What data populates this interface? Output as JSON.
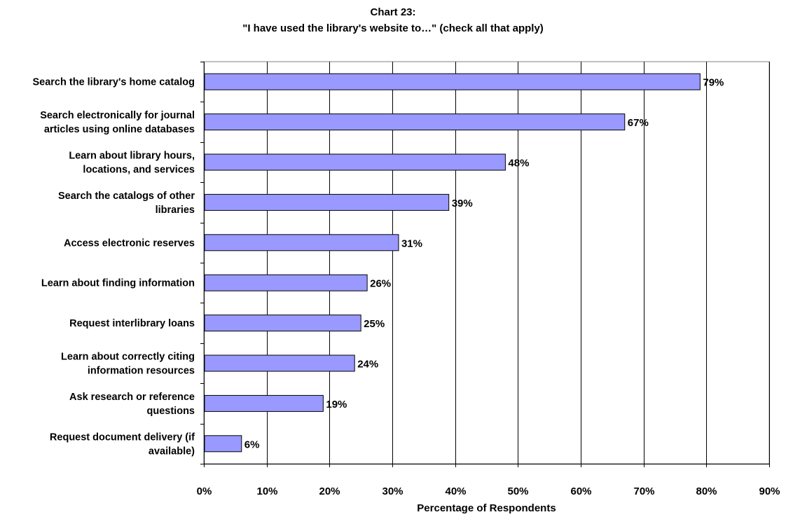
{
  "chart_data": {
    "type": "bar",
    "orientation": "horizontal",
    "title": "Chart 23:",
    "subtitle": "\"I have used the library's website to…\" (check all that apply)",
    "xlabel": "Percentage of Respondents",
    "ylabel": "",
    "categories": [
      "Search the library's home catalog",
      "Search electronically for journal\narticles using online databases",
      "Learn about library hours,\nlocations, and services",
      "Search the catalogs of other\nlibraries",
      "Access electronic reserves",
      "Learn about finding information",
      "Request interlibrary loans",
      "Learn about correctly citing\ninformation resources",
      "Ask research or reference\nquestions",
      "Request document delivery (if\navailable)"
    ],
    "values": [
      79,
      67,
      48,
      39,
      31,
      26,
      25,
      24,
      19,
      6
    ],
    "value_labels": [
      "79%",
      "67%",
      "48%",
      "39%",
      "31%",
      "26%",
      "25%",
      "24%",
      "19%",
      "6%"
    ],
    "xlim": [
      0,
      90
    ],
    "xticks": [
      0,
      10,
      20,
      30,
      40,
      50,
      60,
      70,
      80,
      90
    ],
    "xtick_labels": [
      "0%",
      "10%",
      "20%",
      "30%",
      "40%",
      "50%",
      "60%",
      "70%",
      "80%",
      "90%"
    ],
    "grid": true,
    "legend": "none",
    "colors": {
      "bar_fill": "#9999ff",
      "bar_stroke": "#000000",
      "gridline": "#000000"
    }
  }
}
